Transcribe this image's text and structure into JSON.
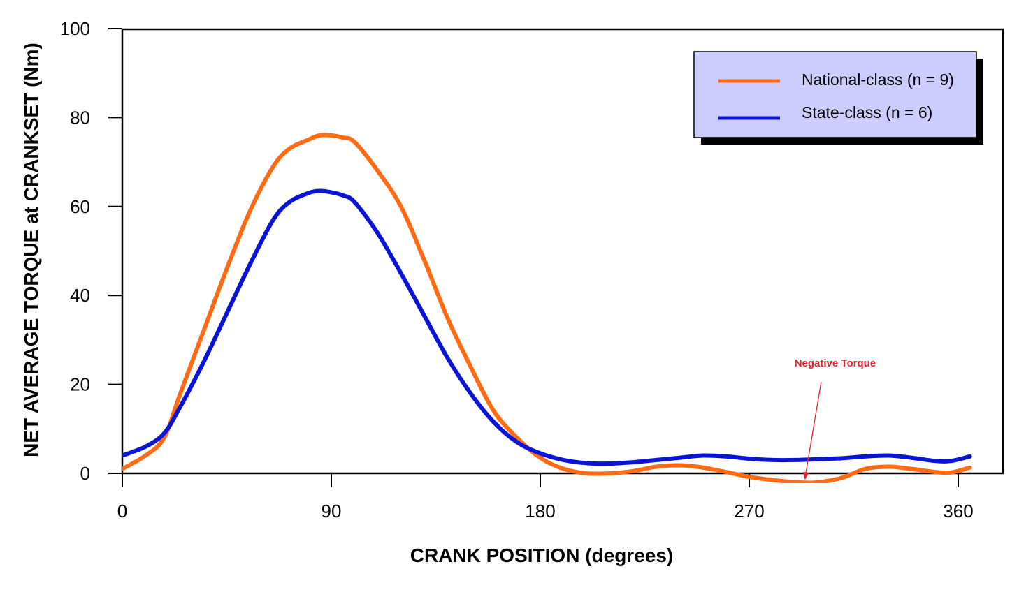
{
  "chart_data": {
    "type": "line",
    "title": "",
    "xlabel": "CRANK POSITION (degrees)",
    "ylabel": "NET  AVERAGE TORQUE  at CRANKSET  (Nm)",
    "xlim": [
      0,
      380
    ],
    "ylim": [
      0,
      100
    ],
    "x_ticks": [
      0,
      90,
      180,
      270,
      360
    ],
    "y_ticks": [
      0,
      20,
      40,
      60,
      80,
      100
    ],
    "grid": false,
    "legend_position": "top-right",
    "series": [
      {
        "name": "National-class (n = 9)",
        "color": "#ff6a13",
        "x": [
          0,
          10,
          18,
          25,
          35,
          45,
          55,
          65,
          72,
          80,
          85,
          90,
          95,
          100,
          110,
          120,
          130,
          140,
          150,
          160,
          170,
          180,
          190,
          200,
          210,
          220,
          230,
          240,
          250,
          260,
          270,
          280,
          290,
          295,
          300,
          310,
          320,
          330,
          340,
          350,
          357,
          365
        ],
        "y": [
          1,
          4,
          8,
          18,
          32,
          46,
          59,
          69,
          73,
          75,
          76,
          76,
          75.5,
          74.5,
          68,
          60,
          48,
          35,
          24,
          14,
          8,
          3.5,
          1,
          0,
          0,
          0.5,
          1.5,
          1.8,
          1.3,
          0.3,
          -0.8,
          -1.5,
          -2,
          -2.1,
          -2,
          -1,
          1,
          1.5,
          1,
          0.3,
          0.2,
          1.3
        ]
      },
      {
        "name": "State-class (n = 6)",
        "color": "#0a14d6",
        "x": [
          0,
          10,
          18,
          25,
          35,
          45,
          55,
          65,
          72,
          80,
          85,
          90,
          95,
          100,
          110,
          120,
          130,
          140,
          150,
          160,
          170,
          180,
          190,
          200,
          210,
          220,
          230,
          240,
          250,
          260,
          270,
          280,
          290,
          300,
          310,
          320,
          330,
          340,
          350,
          357,
          365
        ],
        "y": [
          4,
          6,
          9,
          15,
          25,
          36,
          47,
          57,
          61,
          63,
          63.5,
          63.2,
          62.5,
          61,
          54,
          45,
          35.5,
          26,
          18,
          11.5,
          7,
          4.5,
          3,
          2.3,
          2.2,
          2.5,
          3,
          3.5,
          4,
          3.8,
          3.3,
          3,
          3,
          3.2,
          3.4,
          3.8,
          4,
          3.5,
          2.8,
          2.8,
          3.8
        ]
      }
    ],
    "annotations": [
      {
        "text": "Negative Torque",
        "color": "#e8202a",
        "x_text": 307,
        "y_text": 24,
        "x_point": 294,
        "y_point": -1.8
      }
    ]
  }
}
